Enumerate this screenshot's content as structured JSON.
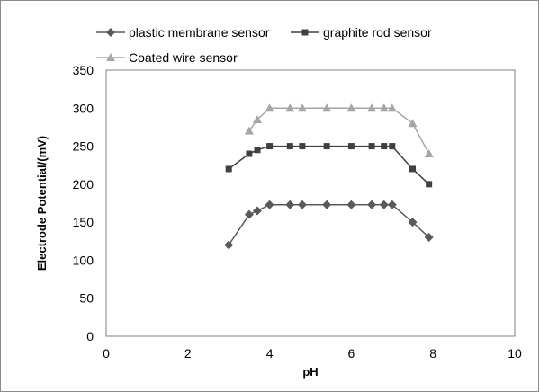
{
  "chart_data": {
    "type": "line",
    "xlabel": "pH",
    "ylabel": "Electrode Potential/(mV)",
    "xlim": [
      0,
      10
    ],
    "ylim": [
      0,
      350
    ],
    "xticks": [
      0,
      2,
      4,
      6,
      8,
      10
    ],
    "yticks": [
      0,
      50,
      100,
      150,
      200,
      250,
      300,
      350
    ],
    "grid": false,
    "legend_position": "top",
    "series": [
      {
        "name": "plastic membrane sensor",
        "marker": "diamond",
        "color": "#595959",
        "x": [
          3.0,
          3.5,
          3.7,
          4.0,
          4.5,
          4.8,
          5.4,
          6.0,
          6.5,
          6.8,
          7.0,
          7.5,
          7.9
        ],
        "y": [
          120,
          160,
          165,
          173,
          173,
          173,
          173,
          173,
          173,
          173,
          173,
          150,
          130
        ]
      },
      {
        "name": "graphite rod sensor",
        "marker": "square",
        "color": "#404040",
        "x": [
          3.0,
          3.5,
          3.7,
          4.0,
          4.5,
          4.8,
          5.4,
          6.0,
          6.5,
          6.8,
          7.0,
          7.5,
          7.9
        ],
        "y": [
          220,
          240,
          245,
          250,
          250,
          250,
          250,
          250,
          250,
          250,
          250,
          220,
          200
        ]
      },
      {
        "name": "Coated wire sensor",
        "marker": "triangle",
        "color": "#a6a6a6",
        "x": [
          3.5,
          3.7,
          4.0,
          4.5,
          4.8,
          5.4,
          6.0,
          6.5,
          6.8,
          7.0,
          7.5,
          7.9
        ],
        "y": [
          270,
          285,
          300,
          300,
          300,
          300,
          300,
          300,
          300,
          300,
          280,
          240
        ]
      }
    ]
  }
}
